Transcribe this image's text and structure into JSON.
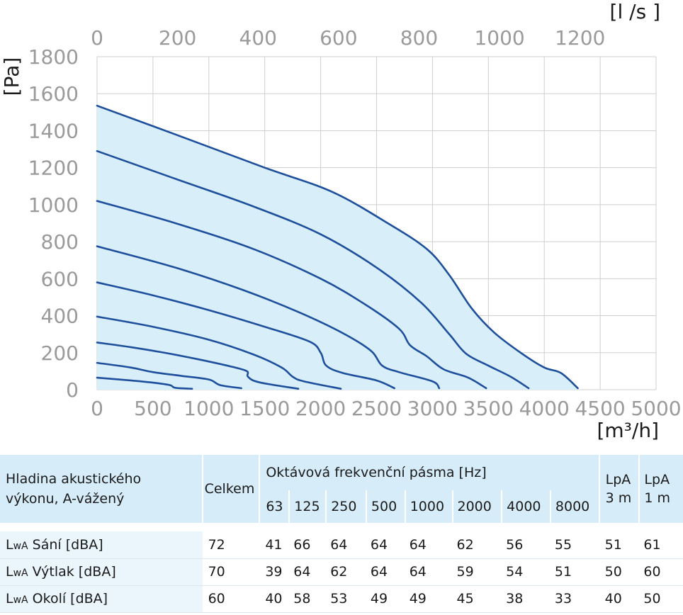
{
  "chart_data": {
    "type": "line",
    "x_unit_label": "[m³/h]",
    "x_top_unit_label": "[l /s ]",
    "y_unit_label": "[Pa]",
    "xlim": [
      0,
      5000
    ],
    "ylim": [
      0,
      1800
    ],
    "x_ticks": [
      "0",
      "500",
      "1000",
      "1500",
      "2000",
      "2500",
      "3000",
      "3500",
      "4000",
      "4500",
      "5000"
    ],
    "x_top_ticks": [
      "0",
      "200",
      "400",
      "600",
      "800",
      "1000",
      "1200"
    ],
    "y_ticks": [
      "0",
      "200",
      "400",
      "600",
      "800",
      "1000",
      "1200",
      "1400",
      "1600",
      "1800"
    ],
    "grid": true,
    "envelope_fill_color": "#d8eef9",
    "curve_color": "#1e4f9c",
    "series": [
      {
        "points": [
          [
            0,
            65
          ],
          [
            300,
            50
          ],
          [
            500,
            38
          ],
          [
            650,
            25
          ],
          [
            700,
            10
          ],
          [
            850,
            5
          ]
        ]
      },
      {
        "points": [
          [
            0,
            145
          ],
          [
            300,
            120
          ],
          [
            500,
            95
          ],
          [
            750,
            75
          ],
          [
            1000,
            55
          ],
          [
            1100,
            25
          ],
          [
            1290,
            8
          ]
        ]
      },
      {
        "points": [
          [
            0,
            255
          ],
          [
            300,
            230
          ],
          [
            600,
            200
          ],
          [
            900,
            165
          ],
          [
            1200,
            125
          ],
          [
            1340,
            100
          ],
          [
            1350,
            70
          ],
          [
            1450,
            40
          ],
          [
            1800,
            5
          ]
        ]
      },
      {
        "points": [
          [
            0,
            395
          ],
          [
            500,
            340
          ],
          [
            1000,
            270
          ],
          [
            1400,
            190
          ],
          [
            1650,
            120
          ],
          [
            1750,
            70
          ],
          [
            1850,
            45
          ],
          [
            2180,
            5
          ]
        ]
      },
      {
        "points": [
          [
            0,
            580
          ],
          [
            500,
            510
          ],
          [
            1000,
            430
          ],
          [
            1500,
            340
          ],
          [
            1900,
            260
          ],
          [
            2000,
            200
          ],
          [
            2050,
            130
          ],
          [
            2200,
            90
          ],
          [
            2500,
            50
          ],
          [
            2660,
            8
          ]
        ]
      },
      {
        "points": [
          [
            0,
            775
          ],
          [
            700,
            660
          ],
          [
            1300,
            540
          ],
          [
            1800,
            420
          ],
          [
            2200,
            305
          ],
          [
            2450,
            210
          ],
          [
            2550,
            130
          ],
          [
            2700,
            95
          ],
          [
            3000,
            45
          ],
          [
            3060,
            8
          ]
        ]
      },
      {
        "points": [
          [
            0,
            1020
          ],
          [
            700,
            900
          ],
          [
            1400,
            760
          ],
          [
            2000,
            600
          ],
          [
            2400,
            460
          ],
          [
            2700,
            330
          ],
          [
            2800,
            240
          ],
          [
            2950,
            180
          ],
          [
            3100,
            110
          ],
          [
            3320,
            65
          ],
          [
            3480,
            8
          ]
        ]
      },
      {
        "points": [
          [
            0,
            1290
          ],
          [
            700,
            1140
          ],
          [
            1400,
            990
          ],
          [
            2000,
            840
          ],
          [
            2500,
            660
          ],
          [
            2900,
            470
          ],
          [
            3150,
            300
          ],
          [
            3300,
            195
          ],
          [
            3500,
            130
          ],
          [
            3700,
            70
          ],
          [
            3860,
            8
          ]
        ]
      },
      {
        "points": [
          [
            0,
            1535
          ],
          [
            700,
            1380
          ],
          [
            1500,
            1200
          ],
          [
            2100,
            1070
          ],
          [
            2600,
            900
          ],
          [
            2950,
            760
          ],
          [
            3150,
            620
          ],
          [
            3350,
            440
          ],
          [
            3550,
            310
          ],
          [
            3800,
            195
          ],
          [
            4000,
            120
          ],
          [
            4150,
            90
          ],
          [
            4300,
            8
          ]
        ]
      }
    ]
  },
  "noise_table": {
    "title_line1": "Hladina akustického",
    "title_line2": "výkonu, A-vážený",
    "total_label": "Celkem",
    "bands_label": "Oktávová frekvenční pásma [Hz]",
    "lpa3_line1": "LpA",
    "lpa3_line2": "3 m",
    "lpa1_line1": "LpA",
    "lpa1_line2": "1 m",
    "bands": [
      "63",
      "125",
      "250",
      "500",
      "1000",
      "2000",
      "4000",
      "8000"
    ],
    "rows": [
      {
        "prefix": "L",
        "sub": "wA",
        "label": " Sání [dBA]",
        "total": "72",
        "values": [
          "41",
          "66",
          "64",
          "64",
          "64",
          "62",
          "56",
          "55"
        ],
        "lpa3": "51",
        "lpa1": "61"
      },
      {
        "prefix": "L",
        "sub": "wA",
        "label": " Výtlak [dBA]",
        "total": "70",
        "values": [
          "39",
          "64",
          "62",
          "64",
          "64",
          "59",
          "54",
          "51"
        ],
        "lpa3": "50",
        "lpa1": "60"
      },
      {
        "prefix": "L",
        "sub": "wA",
        "label": " Okolí [dBA]",
        "total": "60",
        "values": [
          "40",
          "58",
          "53",
          "49",
          "49",
          "45",
          "38",
          "33"
        ],
        "lpa3": "40",
        "lpa1": "50"
      }
    ]
  }
}
